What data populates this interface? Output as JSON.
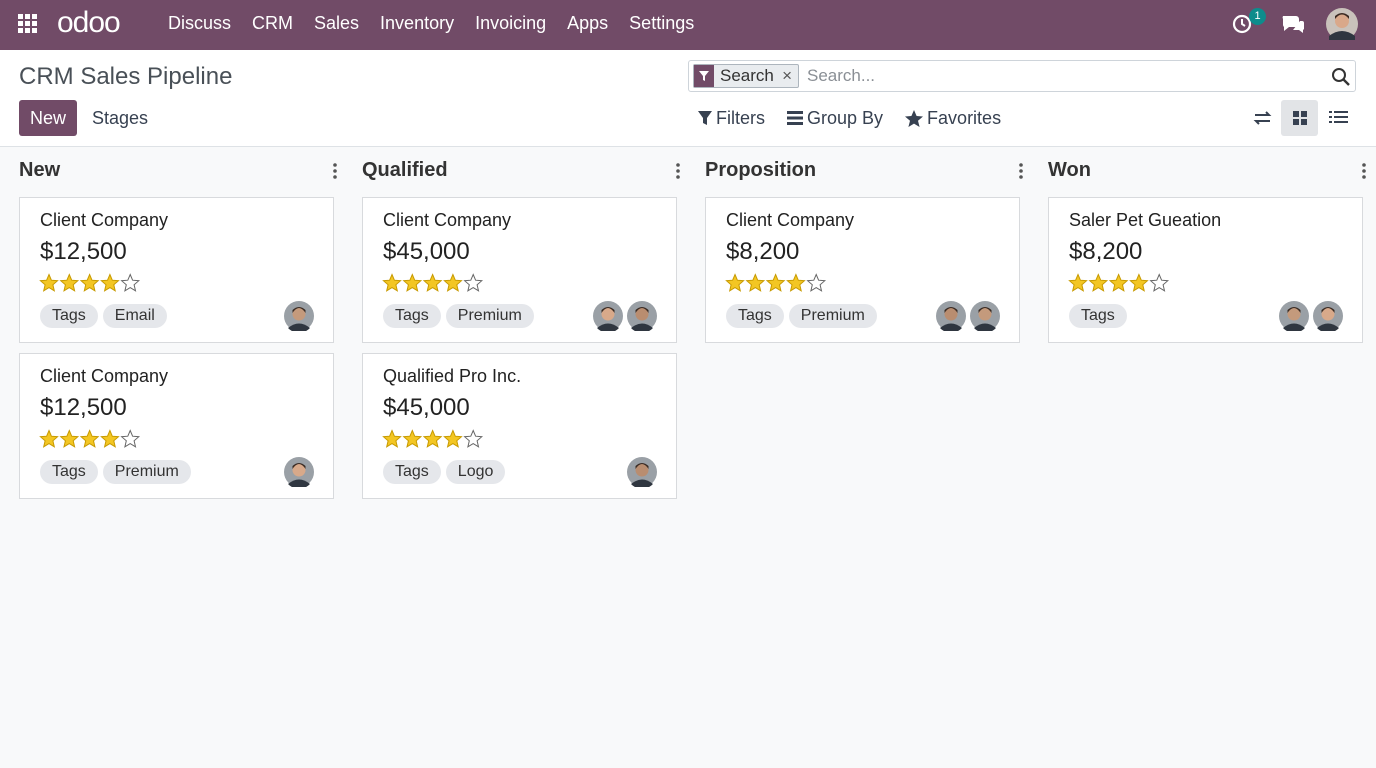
{
  "navbar": {
    "brand": "odoo",
    "menu": [
      "Discuss",
      "CRM",
      "Sales",
      "Inventory",
      "Invoicing",
      "Apps",
      "Settings"
    ],
    "activity_count": 1
  },
  "control_panel": {
    "title": "CRM Sales Pipeline",
    "buttons": [
      "New",
      "Stages"
    ],
    "search_facet": "Search",
    "search_placeholder": "Search...",
    "search_options": [
      "Filters",
      "Group By",
      "Favorites"
    ]
  },
  "rating_scale": 5,
  "columns": [
    {
      "name": "New",
      "cards": [
        {
          "company": "Client Company",
          "amount": "$12,500",
          "rating": 4,
          "tags": [
            "Tags",
            "Email"
          ],
          "assignees": 1
        },
        {
          "company": "Client Company",
          "amount": "$12,500",
          "rating": 4,
          "tags": [
            "Tags",
            "Premium"
          ],
          "assignees": 1
        }
      ]
    },
    {
      "name": "Qualified",
      "cards": [
        {
          "company": "Client Company",
          "amount": "$45,000",
          "rating": 4,
          "tags": [
            "Tags",
            "Premium"
          ],
          "assignees": 2
        },
        {
          "company": "Qualified Pro Inc.",
          "amount": "$45,000",
          "rating": 4,
          "tags": [
            "Tags",
            "Logo"
          ],
          "assignees": 1
        }
      ]
    },
    {
      "name": "Proposition",
      "cards": [
        {
          "company": "Client Company",
          "amount": "$8,200",
          "rating": 4,
          "tags": [
            "Tags",
            "Premium"
          ],
          "assignees": 2
        }
      ]
    },
    {
      "name": "Won",
      "cards": [
        {
          "company": "Saler Pet Gueation",
          "amount": "$8,200",
          "rating": 4,
          "tags": [
            "Tags"
          ],
          "assignees": 2
        }
      ]
    }
  ]
}
